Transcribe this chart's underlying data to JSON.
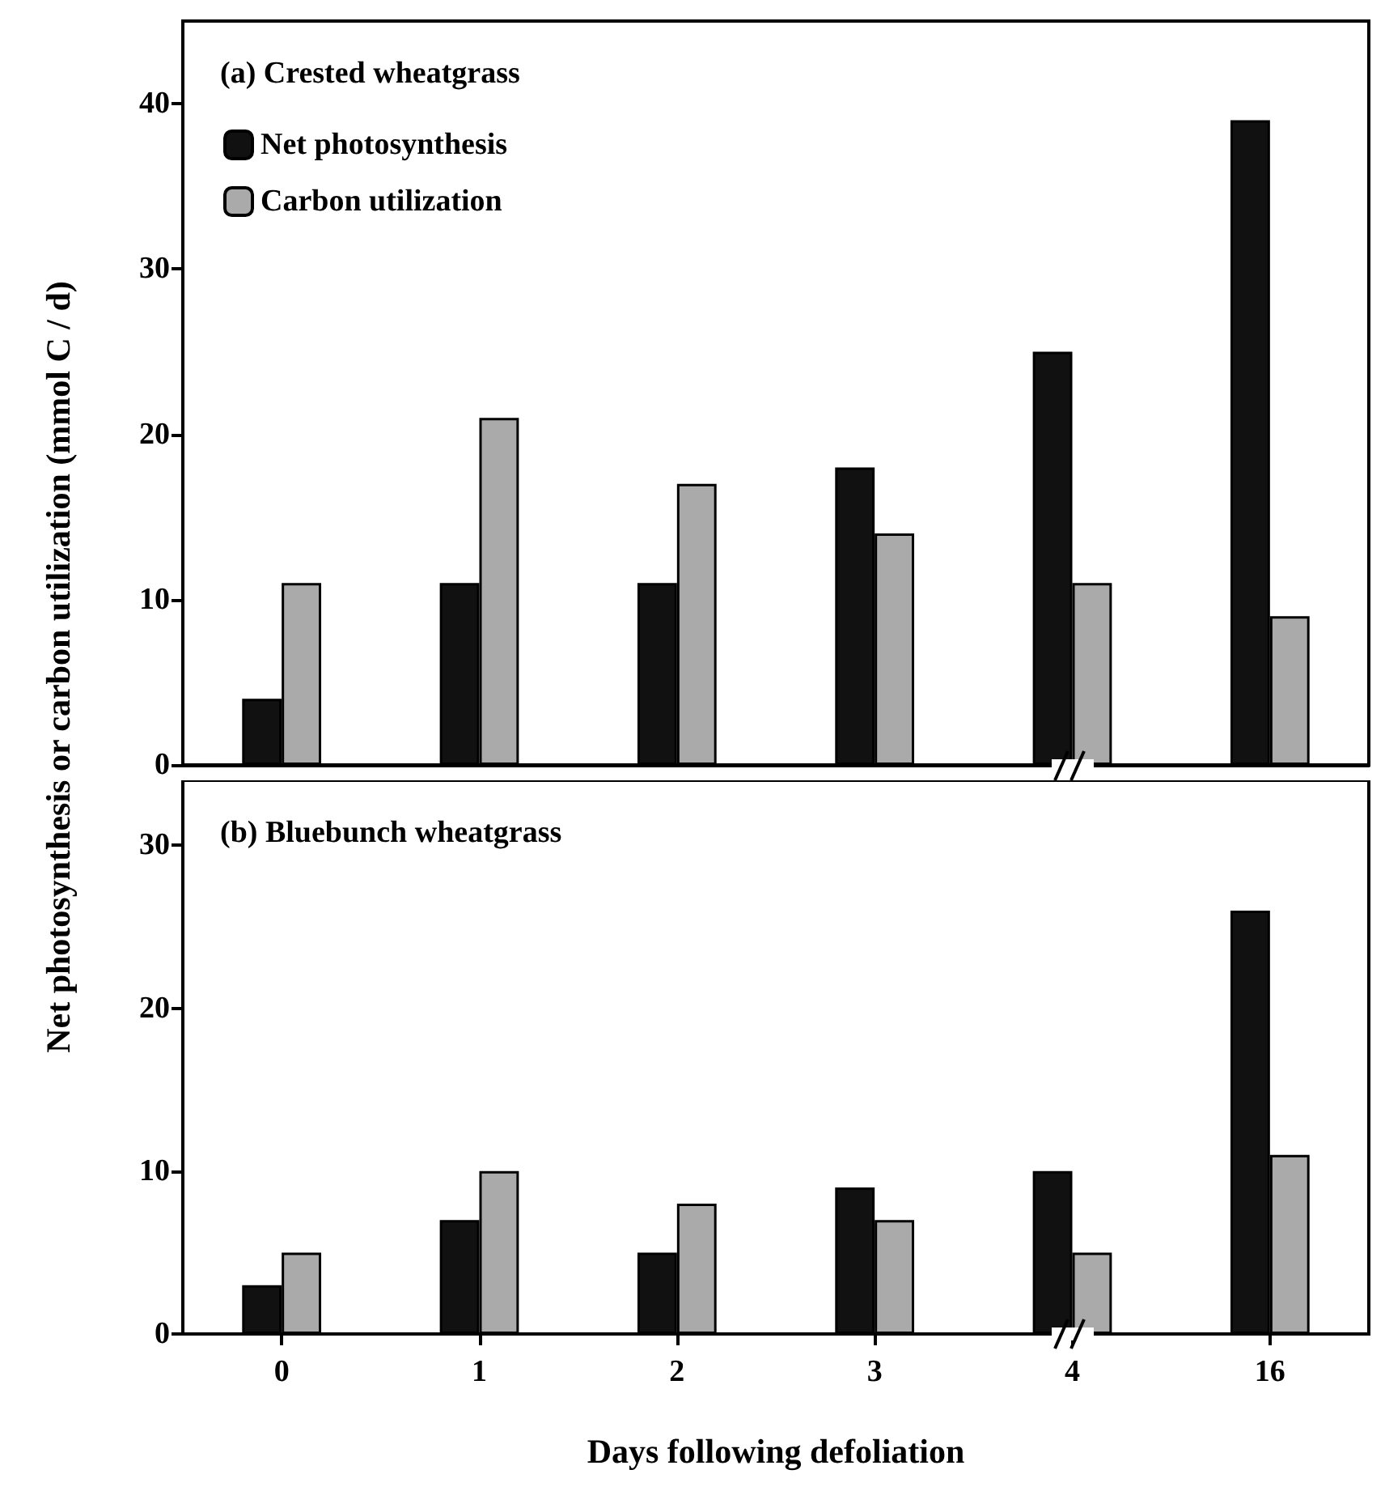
{
  "chart_data": [
    {
      "type": "bar",
      "title": "(a) Crested wheatgrass",
      "ylabel": "Net photosynthesis or carbon utilization (mmol C / d)",
      "categories": [
        "0",
        "1",
        "2",
        "3",
        "4",
        "16"
      ],
      "series": [
        {
          "name": "Net photosynthesis",
          "color": "#111111",
          "values": [
            4,
            11,
            11,
            18,
            25,
            39
          ]
        },
        {
          "name": "Carbon utilization",
          "color": "#aaaaaa",
          "values": [
            11,
            21,
            17,
            14,
            11,
            9
          ]
        }
      ],
      "ylim": [
        0,
        45
      ],
      "yticks": [
        0,
        10,
        20,
        30,
        40
      ],
      "legend": "top left",
      "tick_labels": "y"
    },
    {
      "type": "bar",
      "title": "(b) Bluebunch wheatgrass",
      "xlabel": "Days following defoliation",
      "categories": [
        "0",
        "1",
        "2",
        "3",
        "4",
        "16"
      ],
      "series": [
        {
          "color": "#111111",
          "values": [
            3,
            7,
            5,
            9,
            10,
            26
          ]
        },
        {
          "color": "#aaaaaa",
          "values": [
            5,
            10,
            8,
            7,
            5,
            11
          ]
        }
      ],
      "ylim": [
        0,
        34
      ],
      "yticks": [
        0,
        10,
        20,
        30
      ]
    }
  ]
}
